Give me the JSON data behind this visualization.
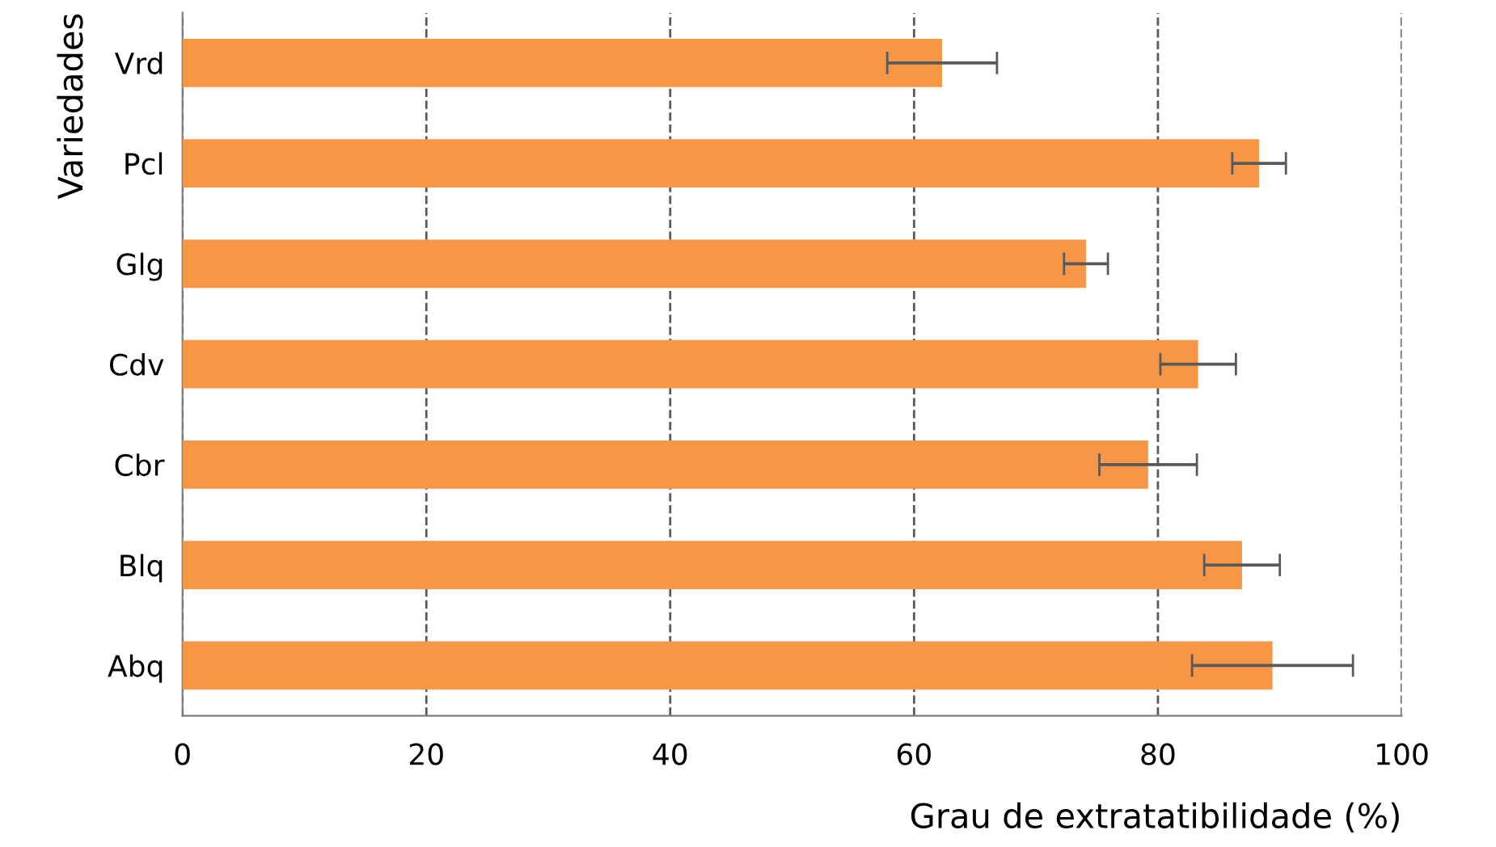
{
  "chart_data": {
    "type": "bar",
    "orientation": "horizontal",
    "xlabel": "Grau de extratatibilidade (%)",
    "ylabel": "Variedades",
    "categories": [
      "Vrd",
      "Pcl",
      "Glg",
      "Cdv",
      "Cbr",
      "Blq",
      "Abq"
    ],
    "values": [
      62.3,
      88.3,
      74.1,
      83.3,
      79.2,
      86.9,
      89.4
    ],
    "errors": [
      4.5,
      2.2,
      1.8,
      3.1,
      4.0,
      3.1,
      6.6
    ],
    "color": "#f79646",
    "xlim": [
      0,
      100
    ],
    "xticks": [
      0,
      20,
      40,
      60,
      80,
      100
    ],
    "grid": "x",
    "line_style": "dashed"
  }
}
